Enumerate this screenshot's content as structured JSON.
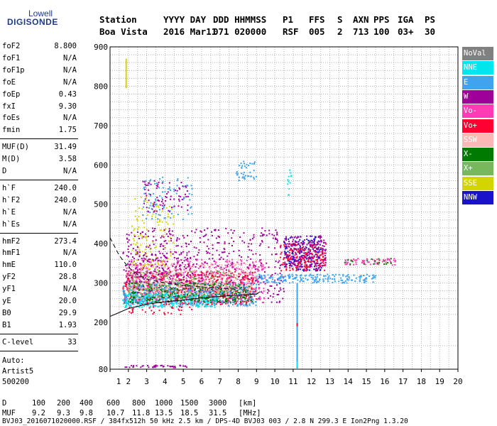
{
  "logo": {
    "line1": "Lowell",
    "line2": "DIGISONDE"
  },
  "header": {
    "labels": [
      "Station",
      "YYYY DAY",
      "DDD HHMMSS",
      "P1",
      "FFS",
      "S",
      "AXN",
      "PPS",
      "IGA",
      "PS"
    ],
    "values": [
      "Boa Vista",
      "2016 Mar11",
      "071 020000",
      "RSF",
      "005",
      "2",
      "713",
      "100",
      "03+",
      "30"
    ]
  },
  "params": {
    "group1": [
      [
        "foF2",
        "8.800"
      ],
      [
        "foF1",
        "N/A"
      ],
      [
        "foF1p",
        "N/A"
      ],
      [
        "foE",
        "N/A"
      ],
      [
        "foEp",
        "0.43"
      ],
      [
        "fxI",
        "9.30"
      ],
      [
        "foEs",
        "N/A"
      ],
      [
        "fmin",
        "1.75"
      ]
    ],
    "group2": [
      [
        "MUF(D)",
        "31.49"
      ],
      [
        "M(D)",
        "3.58"
      ],
      [
        "D",
        "N/A"
      ]
    ],
    "group3": [
      [
        "h`F",
        "240.0"
      ],
      [
        "h`F2",
        "240.0"
      ],
      [
        "h`E",
        "N/A"
      ],
      [
        "h`Es",
        "N/A"
      ]
    ],
    "group4": [
      [
        "hmF2",
        "273.4"
      ],
      [
        "hmF1",
        "N/A"
      ],
      [
        "hmE",
        "110.0"
      ],
      [
        "yF2",
        "28.8"
      ],
      [
        "yF1",
        "N/A"
      ],
      [
        "yE",
        "20.0"
      ],
      [
        "B0",
        "29.9"
      ],
      [
        "B1",
        "1.93"
      ]
    ],
    "clevel": [
      "C-level",
      "33"
    ],
    "footer": [
      "Auto:",
      "Artist5",
      "500200"
    ]
  },
  "legend": [
    {
      "label": "NoVal",
      "color": "#808080"
    },
    {
      "label": "NNE",
      "color": "#00e5ee"
    },
    {
      "label": "E",
      "color": "#3fa3ef"
    },
    {
      "label": "W",
      "color": "#a0009a"
    },
    {
      "label": "Vo-",
      "color": "#ff3cb4"
    },
    {
      "label": "Vo+",
      "color": "#ff0033"
    },
    {
      "label": "SSW",
      "color": "#ffb6b6"
    },
    {
      "label": "X-",
      "color": "#007a00"
    },
    {
      "label": "X+",
      "color": "#77b85a"
    },
    {
      "label": "SSE",
      "color": "#d4d400"
    },
    {
      "label": "NNW",
      "color": "#1a12c8"
    }
  ],
  "bottom": {
    "row1": [
      "D",
      "100",
      "200",
      "400",
      "600",
      "800",
      "1000",
      "1500",
      "3000",
      "[km]"
    ],
    "row2": [
      "MUF",
      "9.2",
      "9.3",
      "9.8",
      "10.7",
      "11.8",
      "13.5",
      "18.5",
      "31.5",
      "[MHz]"
    ],
    "file": "BVJ03_2016071020000.RSF / 384fx512h 50 kHz 2.5 km / DPS-4D BVJ03 003 / 2.8 N 299.3 E Ion2Png 1.3.20"
  },
  "chart_data": {
    "type": "scatter",
    "title": "",
    "xlabel": "",
    "ylabel": "",
    "xlim": [
      1,
      20
    ],
    "ylim": [
      80,
      900
    ],
    "xticks": [
      "1",
      "2",
      "3",
      "4",
      "5",
      "6",
      "7",
      "8",
      "9",
      "10",
      "11",
      "12",
      "13",
      "14",
      "15",
      "16",
      "17",
      "18",
      "19",
      "20"
    ],
    "yticks": [
      "80",
      "200",
      "300",
      "400",
      "500",
      "600",
      "700",
      "800",
      "900"
    ],
    "grid": true,
    "legend_position": "right",
    "traces": [
      {
        "name": "profile-dashed",
        "style": "dashed",
        "points": [
          [
            1,
            415
          ],
          [
            1.5,
            370
          ],
          [
            2,
            340
          ],
          [
            2.5,
            322
          ],
          [
            3,
            310
          ],
          [
            4,
            300
          ],
          [
            5,
            294
          ],
          [
            6,
            290
          ],
          [
            7,
            287
          ],
          [
            8,
            284
          ]
        ]
      },
      {
        "name": "profile-solid",
        "style": "solid",
        "points": [
          [
            1,
            215
          ],
          [
            1.5,
            225
          ],
          [
            2,
            235
          ],
          [
            3,
            246
          ],
          [
            4,
            252
          ],
          [
            5,
            257
          ],
          [
            6,
            262
          ],
          [
            7,
            266
          ],
          [
            8,
            269
          ],
          [
            9,
            272
          ],
          [
            9.2,
            278
          ]
        ]
      }
    ],
    "clusters": [
      {
        "color": "#ff0033",
        "x": [
          1.7,
          9.0
        ],
        "y": [
          245,
          330
        ],
        "n": 700
      },
      {
        "color": "#ff3cb4",
        "x": [
          1.8,
          9.5
        ],
        "y": [
          250,
          360
        ],
        "n": 500
      },
      {
        "color": "#a0009a",
        "x": [
          1.7,
          10.5
        ],
        "y": [
          250,
          440
        ],
        "n": 500
      },
      {
        "color": "#3fa3ef",
        "x": [
          1.7,
          9.0
        ],
        "y": [
          240,
          300
        ],
        "n": 450
      },
      {
        "color": "#00e5ee",
        "x": [
          1.7,
          7.0
        ],
        "y": [
          238,
          275
        ],
        "n": 250
      },
      {
        "color": "#007a00",
        "x": [
          2.0,
          8.8
        ],
        "y": [
          250,
          300
        ],
        "n": 300
      },
      {
        "color": "#77b85a",
        "x": [
          2.0,
          8.0
        ],
        "y": [
          260,
          330
        ],
        "n": 200
      },
      {
        "color": "#ffb6b6",
        "x": [
          2.0,
          9.0
        ],
        "y": [
          270,
          350
        ],
        "n": 300
      },
      {
        "color": "#d4d400",
        "x": [
          2.2,
          4.5
        ],
        "y": [
          330,
          520
        ],
        "n": 120
      },
      {
        "color": "#1a12c8",
        "x": [
          10.5,
          12.6
        ],
        "y": [
          330,
          420
        ],
        "n": 200
      },
      {
        "color": "#ff0033",
        "x": [
          10.3,
          12.8
        ],
        "y": [
          330,
          400
        ],
        "n": 200
      },
      {
        "color": "#a0009a",
        "x": [
          10.5,
          12.8
        ],
        "y": [
          340,
          420
        ],
        "n": 150
      },
      {
        "color": "#3fa3ef",
        "x": [
          9.0,
          15.5
        ],
        "y": [
          300,
          322
        ],
        "n": 200
      },
      {
        "color": "#ff3cb4",
        "x": [
          13.8,
          16.6
        ],
        "y": [
          345,
          362
        ],
        "n": 60
      },
      {
        "color": "#007a00",
        "x": [
          13.8,
          16.4
        ],
        "y": [
          348,
          362
        ],
        "n": 20
      },
      {
        "color": "#a0009a",
        "x": [
          2.8,
          5.3
        ],
        "y": [
          480,
          560
        ],
        "n": 80
      },
      {
        "color": "#3fa3ef",
        "x": [
          2.8,
          5.5
        ],
        "y": [
          460,
          570
        ],
        "n": 80
      },
      {
        "color": "#3fa3ef",
        "x": [
          7.8,
          9.0
        ],
        "y": [
          560,
          610
        ],
        "n": 40
      },
      {
        "color": "#a0009a",
        "x": [
          2.0,
          5.5
        ],
        "y": [
          300,
          380
        ],
        "n": 120
      },
      {
        "color": "#ff0033",
        "x": [
          2.0,
          5.5
        ],
        "y": [
          220,
          240
        ],
        "n": 30
      },
      {
        "color": "#00e5ee",
        "x": [
          10.7,
          10.9
        ],
        "y": [
          520,
          600
        ],
        "n": 12
      },
      {
        "color": "#a0009a",
        "x": [
          1.8,
          5.3
        ],
        "y": [
          84,
          90
        ],
        "n": 40
      }
    ],
    "columns": [
      {
        "color": "#d4d400",
        "x": 1.88,
        "y": [
          795,
          870
        ]
      },
      {
        "color": "#3fa3ef",
        "x": 11.22,
        "y": [
          82,
          300
        ]
      },
      {
        "color": "#00e5ee",
        "x": 11.22,
        "y": [
          85,
          100
        ]
      },
      {
        "color": "#ff0033",
        "x": 11.22,
        "y": [
          190,
          198
        ]
      }
    ]
  }
}
